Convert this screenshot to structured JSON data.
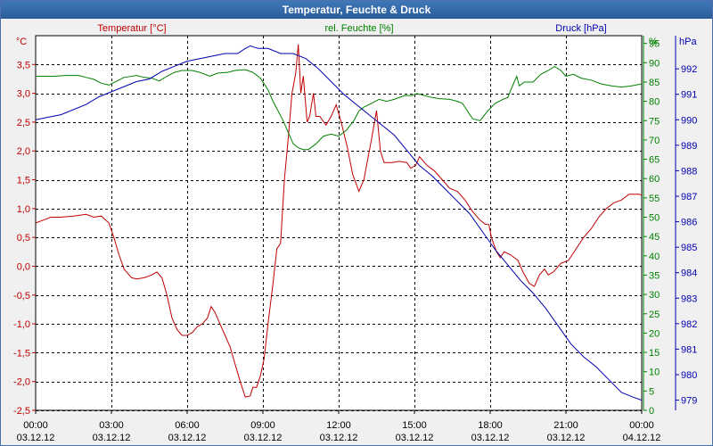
{
  "window": {
    "title": "Temperatur, Feuchte & Druck"
  },
  "chart_data": {
    "type": "line",
    "title": "Temperatur, Feuchte & Druck",
    "x_ticks": [
      {
        "time": "00:00",
        "date": "03.12.12"
      },
      {
        "time": "03:00",
        "date": "03.12.12"
      },
      {
        "time": "06:00",
        "date": "03.12.12"
      },
      {
        "time": "09:00",
        "date": "03.12.12"
      },
      {
        "time": "12:00",
        "date": "03.12.12"
      },
      {
        "time": "15:00",
        "date": "03.12.12"
      },
      {
        "time": "18:00",
        "date": "03.12.12"
      },
      {
        "time": "21:00",
        "date": "03.12.12"
      },
      {
        "time": "00:00",
        "date": "04.12.12"
      }
    ],
    "x_range_hours": [
      0,
      24
    ],
    "axes": {
      "temperature": {
        "label": "Temperatur [°C]",
        "unit": "°C",
        "range": [
          -2.5,
          4.0
        ],
        "ticks": [
          "-2,5",
          "-2,0",
          "-1,5",
          "-1,0",
          "-0,5",
          "0,0",
          "0,5",
          "1,0",
          "1,5",
          "2,0",
          "2,5",
          "3,0",
          "3,5"
        ]
      },
      "humidity": {
        "label": "rel. Feuchte [%]",
        "unit": "%",
        "range": [
          0,
          97
        ],
        "ticks": [
          "0",
          "5",
          "10",
          "15",
          "20",
          "25",
          "30",
          "35",
          "40",
          "45",
          "50",
          "55",
          "60",
          "65",
          "70",
          "75",
          "80",
          "85",
          "90",
          "95"
        ]
      },
      "pressure": {
        "label": "Druck [hPa]",
        "unit": "hPa",
        "range": [
          978.6,
          993.3
        ],
        "ticks": [
          "979",
          "980",
          "981",
          "982",
          "983",
          "984",
          "985",
          "986",
          "987",
          "988",
          "989",
          "990",
          "991",
          "992"
        ]
      }
    },
    "grid": true,
    "colors": {
      "temperature": "#c00000",
      "humidity": "#008000",
      "pressure": "#0000b0",
      "grid": "#000000",
      "title_bar": "#2d62a3"
    },
    "series": [
      {
        "name": "Temperatur [°C]",
        "axis": "temperature",
        "color": "#c00000",
        "points": [
          [
            0,
            0.75
          ],
          [
            0.3,
            0.8
          ],
          [
            0.6,
            0.85
          ],
          [
            1.0,
            0.85
          ],
          [
            1.5,
            0.87
          ],
          [
            2.0,
            0.9
          ],
          [
            2.3,
            0.85
          ],
          [
            2.6,
            0.87
          ],
          [
            2.9,
            0.75
          ],
          [
            3.1,
            0.5
          ],
          [
            3.3,
            0.2
          ],
          [
            3.5,
            -0.05
          ],
          [
            3.8,
            -0.2
          ],
          [
            4.0,
            -0.22
          ],
          [
            4.3,
            -0.2
          ],
          [
            4.6,
            -0.15
          ],
          [
            4.8,
            -0.1
          ],
          [
            5.0,
            -0.2
          ],
          [
            5.2,
            -0.5
          ],
          [
            5.4,
            -0.9
          ],
          [
            5.6,
            -1.1
          ],
          [
            5.8,
            -1.2
          ],
          [
            6.0,
            -1.2
          ],
          [
            6.2,
            -1.15
          ],
          [
            6.4,
            -1.05
          ],
          [
            6.6,
            -1.0
          ],
          [
            6.8,
            -0.9
          ],
          [
            6.95,
            -0.7
          ],
          [
            7.1,
            -0.8
          ],
          [
            7.3,
            -1.0
          ],
          [
            7.5,
            -1.2
          ],
          [
            7.7,
            -1.4
          ],
          [
            7.9,
            -1.7
          ],
          [
            8.1,
            -2.0
          ],
          [
            8.3,
            -2.27
          ],
          [
            8.5,
            -2.25
          ],
          [
            8.6,
            -2.1
          ],
          [
            8.75,
            -2.1
          ],
          [
            8.9,
            -1.9
          ],
          [
            9.05,
            -1.6
          ],
          [
            9.2,
            -1.0
          ],
          [
            9.4,
            -0.3
          ],
          [
            9.55,
            0.3
          ],
          [
            9.7,
            0.4
          ],
          [
            9.85,
            1.5
          ],
          [
            10.0,
            2.2
          ],
          [
            10.15,
            3.0
          ],
          [
            10.3,
            3.35
          ],
          [
            10.4,
            3.85
          ],
          [
            10.5,
            3.0
          ],
          [
            10.6,
            3.3
          ],
          [
            10.75,
            2.5
          ],
          [
            10.85,
            2.6
          ],
          [
            11.0,
            3.0
          ],
          [
            11.1,
            2.6
          ],
          [
            11.25,
            2.6
          ],
          [
            11.5,
            2.45
          ],
          [
            11.7,
            2.6
          ],
          [
            11.9,
            2.8
          ],
          [
            12.1,
            2.5
          ],
          [
            12.35,
            2.05
          ],
          [
            12.55,
            1.6
          ],
          [
            12.8,
            1.3
          ],
          [
            13.0,
            1.5
          ],
          [
            13.3,
            2.2
          ],
          [
            13.5,
            2.7
          ],
          [
            13.65,
            2.0
          ],
          [
            13.8,
            1.8
          ],
          [
            14.1,
            1.8
          ],
          [
            14.4,
            1.82
          ],
          [
            14.7,
            1.8
          ],
          [
            14.85,
            1.7
          ],
          [
            15.05,
            1.75
          ],
          [
            15.2,
            1.9
          ],
          [
            15.5,
            1.75
          ],
          [
            15.8,
            1.65
          ],
          [
            16.1,
            1.5
          ],
          [
            16.4,
            1.35
          ],
          [
            16.7,
            1.3
          ],
          [
            17.0,
            1.15
          ],
          [
            17.3,
            0.95
          ],
          [
            17.6,
            0.8
          ],
          [
            17.8,
            0.73
          ],
          [
            17.95,
            0.72
          ],
          [
            18.05,
            0.5
          ],
          [
            18.25,
            0.25
          ],
          [
            18.4,
            0.15
          ],
          [
            18.55,
            0.25
          ],
          [
            18.8,
            0.2
          ],
          [
            19.1,
            0.1
          ],
          [
            19.3,
            -0.1
          ],
          [
            19.55,
            -0.3
          ],
          [
            19.75,
            -0.35
          ],
          [
            19.95,
            -0.15
          ],
          [
            20.15,
            -0.05
          ],
          [
            20.3,
            -0.15
          ],
          [
            20.5,
            -0.1
          ],
          [
            20.8,
            0.05
          ],
          [
            21.1,
            0.1
          ],
          [
            21.4,
            0.3
          ],
          [
            21.7,
            0.5
          ],
          [
            22.0,
            0.65
          ],
          [
            22.3,
            0.85
          ],
          [
            22.6,
            1.0
          ],
          [
            22.9,
            1.1
          ],
          [
            23.2,
            1.15
          ],
          [
            23.5,
            1.25
          ],
          [
            23.9,
            1.25
          ],
          [
            24.0,
            1.23
          ]
        ]
      },
      {
        "name": "rel. Feuchte [%]",
        "axis": "humidity",
        "color": "#008000",
        "points": [
          [
            0,
            86.5
          ],
          [
            0.7,
            86.5
          ],
          [
            1.2,
            86.7
          ],
          [
            1.7,
            86.7
          ],
          [
            2.0,
            86.2
          ],
          [
            2.3,
            85.7
          ],
          [
            2.6,
            84.7
          ],
          [
            2.9,
            84.2
          ],
          [
            3.2,
            85.2
          ],
          [
            3.5,
            86.2
          ],
          [
            4.0,
            86.7
          ],
          [
            4.3,
            86.2
          ],
          [
            4.6,
            86.0
          ],
          [
            4.9,
            85.3
          ],
          [
            5.2,
            86.5
          ],
          [
            5.5,
            87.5
          ],
          [
            5.8,
            88.0
          ],
          [
            6.2,
            88.0
          ],
          [
            6.5,
            87.5
          ],
          [
            6.9,
            86.5
          ],
          [
            7.2,
            87.3
          ],
          [
            7.6,
            87.5
          ],
          [
            7.9,
            88.0
          ],
          [
            8.3,
            88.2
          ],
          [
            8.6,
            87.5
          ],
          [
            8.9,
            86.0
          ],
          [
            9.2,
            83.0
          ],
          [
            9.4,
            80.0
          ],
          [
            9.6,
            77.5
          ],
          [
            9.8,
            75.0
          ],
          [
            10.0,
            72.0
          ],
          [
            10.2,
            69.0
          ],
          [
            10.4,
            68.0
          ],
          [
            10.6,
            67.5
          ],
          [
            10.8,
            67.5
          ],
          [
            11.1,
            69.0
          ],
          [
            11.4,
            71.0
          ],
          [
            11.7,
            71.5
          ],
          [
            12.0,
            71.0
          ],
          [
            12.3,
            72.5
          ],
          [
            12.6,
            75.0
          ],
          [
            12.8,
            77.5
          ],
          [
            13.0,
            78.5
          ],
          [
            13.3,
            79.5
          ],
          [
            13.6,
            80.5
          ],
          [
            13.9,
            80.0
          ],
          [
            14.2,
            80.5
          ],
          [
            14.6,
            81.5
          ],
          [
            14.9,
            81.5
          ],
          [
            15.1,
            82.0
          ],
          [
            15.4,
            81.5
          ],
          [
            15.7,
            81.0
          ],
          [
            16.0,
            80.7
          ],
          [
            16.4,
            80.5
          ],
          [
            16.7,
            80.0
          ],
          [
            16.9,
            79.5
          ],
          [
            17.1,
            77.5
          ],
          [
            17.3,
            75.5
          ],
          [
            17.6,
            75.0
          ],
          [
            17.9,
            77.5
          ],
          [
            18.2,
            79.5
          ],
          [
            18.5,
            80.5
          ],
          [
            18.7,
            81.0
          ],
          [
            18.85,
            83.5
          ],
          [
            19.05,
            86.5
          ],
          [
            19.15,
            84.0
          ],
          [
            19.35,
            85.0
          ],
          [
            19.7,
            85.0
          ],
          [
            20.0,
            87.0
          ],
          [
            20.3,
            88.0
          ],
          [
            20.55,
            89.0
          ],
          [
            20.8,
            88.0
          ],
          [
            21.0,
            86.5
          ],
          [
            21.3,
            87.0
          ],
          [
            21.6,
            86.0
          ],
          [
            22.0,
            85.5
          ],
          [
            22.4,
            84.5
          ],
          [
            22.8,
            84.0
          ],
          [
            23.2,
            83.7
          ],
          [
            23.6,
            84.0
          ],
          [
            24.0,
            84.5
          ]
        ]
      },
      {
        "name": "Druck [hPa]",
        "axis": "pressure",
        "color": "#0000b0",
        "points": [
          [
            0,
            990.0
          ],
          [
            0.5,
            990.1
          ],
          [
            1.0,
            990.2
          ],
          [
            1.5,
            990.4
          ],
          [
            2.0,
            990.6
          ],
          [
            2.5,
            990.9
          ],
          [
            3.0,
            991.1
          ],
          [
            3.5,
            991.3
          ],
          [
            4.0,
            991.5
          ],
          [
            4.5,
            991.6
          ],
          [
            5.0,
            991.9
          ],
          [
            5.5,
            992.1
          ],
          [
            6.0,
            992.3
          ],
          [
            6.5,
            992.4
          ],
          [
            7.0,
            992.5
          ],
          [
            7.5,
            992.6
          ],
          [
            8.0,
            992.6
          ],
          [
            8.3,
            992.8
          ],
          [
            8.5,
            992.9
          ],
          [
            8.8,
            992.8
          ],
          [
            9.2,
            992.8
          ],
          [
            9.7,
            992.6
          ],
          [
            10.2,
            992.6
          ],
          [
            10.7,
            992.4
          ],
          [
            11.2,
            992.0
          ],
          [
            11.7,
            991.5
          ],
          [
            12.2,
            991.0
          ],
          [
            12.7,
            990.6
          ],
          [
            13.2,
            990.2
          ],
          [
            13.7,
            989.8
          ],
          [
            14.2,
            989.4
          ],
          [
            14.7,
            988.8
          ],
          [
            15.2,
            988.2
          ],
          [
            15.7,
            987.8
          ],
          [
            16.2,
            987.3
          ],
          [
            16.7,
            986.8
          ],
          [
            17.2,
            986.3
          ],
          [
            17.7,
            985.6
          ],
          [
            18.2,
            984.9
          ],
          [
            18.7,
            984.3
          ],
          [
            19.2,
            983.7
          ],
          [
            19.7,
            983.2
          ],
          [
            20.2,
            982.6
          ],
          [
            20.7,
            981.9
          ],
          [
            21.2,
            981.2
          ],
          [
            21.7,
            980.7
          ],
          [
            22.2,
            980.3
          ],
          [
            22.7,
            979.8
          ],
          [
            23.2,
            979.3
          ],
          [
            23.7,
            979.1
          ],
          [
            24.0,
            979.0
          ]
        ]
      }
    ]
  }
}
